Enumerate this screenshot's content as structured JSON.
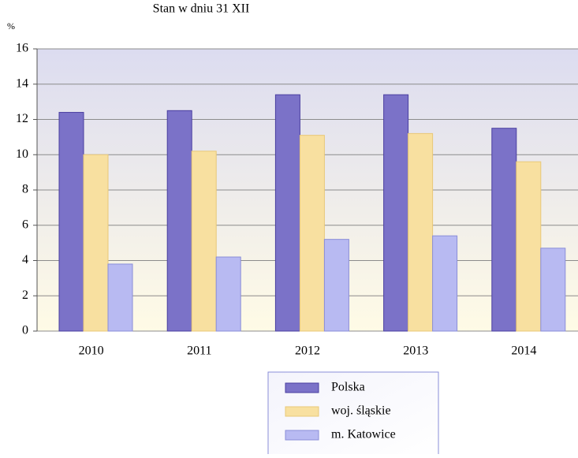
{
  "chart_data": {
    "type": "bar",
    "title": "Stan w dniu 31 XII",
    "y_label": "%",
    "categories": [
      "2010",
      "2011",
      "2012",
      "2013",
      "2014"
    ],
    "series": [
      {
        "name": "Polska",
        "color": "#7b72c8",
        "values": [
          12.4,
          12.5,
          13.4,
          13.4,
          11.5
        ]
      },
      {
        "name": "woj. śląskie",
        "color": "#f8e0a0",
        "values": [
          10.0,
          10.2,
          11.1,
          11.2,
          9.6
        ]
      },
      {
        "name": "m. Katowice",
        "color": "#b8baf2",
        "values": [
          3.8,
          4.2,
          5.2,
          5.4,
          4.7
        ]
      }
    ],
    "ylim": [
      0,
      16
    ],
    "yticks": [
      0,
      2,
      4,
      6,
      8,
      10,
      12,
      14,
      16
    ],
    "grid": true,
    "legend": "bottom"
  }
}
